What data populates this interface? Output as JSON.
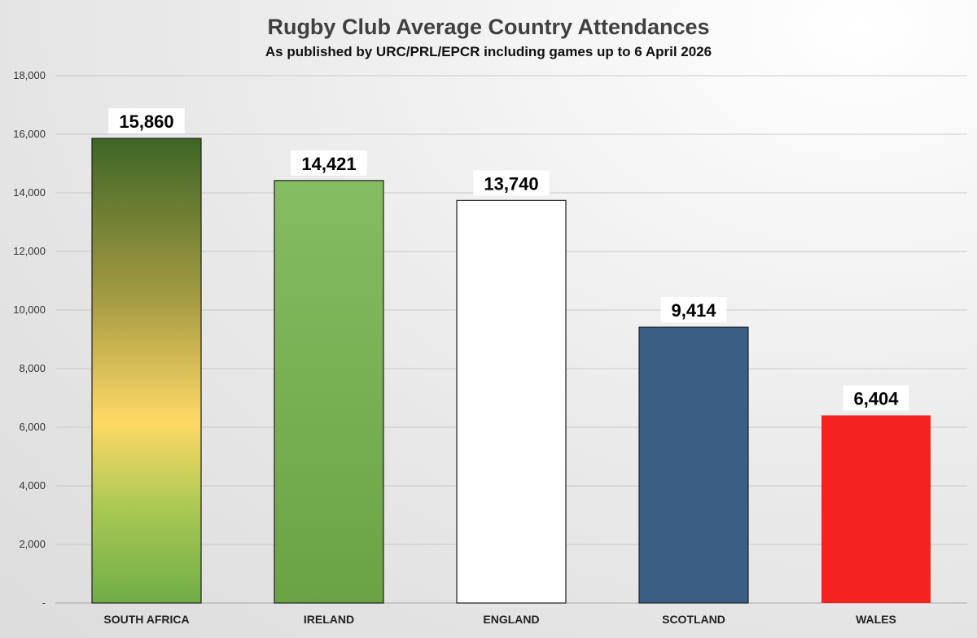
{
  "chart_data": {
    "type": "bar",
    "title": "Rugby Club Average Country Attendances",
    "subtitle": "As published by URC/PRL/EPCR including games up to 6 April 2026",
    "categories": [
      "SOUTH AFRICA",
      "IRELAND",
      "ENGLAND",
      "SCOTLAND",
      "WALES"
    ],
    "values": [
      15860,
      14421,
      13740,
      9414,
      6404
    ],
    "data_labels": [
      "15,860",
      "14,421",
      "13,740",
      "9,414",
      "6,404"
    ],
    "ylim": [
      0,
      18000
    ],
    "yticks": [
      0,
      2000,
      4000,
      6000,
      8000,
      10000,
      12000,
      14000,
      16000,
      18000
    ],
    "ytick_labels": [
      "-",
      "2,000",
      "4,000",
      "6,000",
      "8,000",
      "10,000",
      "12,000",
      "14,000",
      "16,000",
      "18,000"
    ],
    "grid": true,
    "xlabel": "",
    "ylabel": ""
  },
  "colors": {
    "south_africa_gradient": [
      "#3e6626",
      "#a39a42",
      "#ffd966",
      "#70ad47"
    ],
    "ireland": [
      "#86bc62",
      "#6aa344"
    ],
    "england": "#ffffff",
    "scotland": "#3b5e85",
    "wales": "#f52222"
  }
}
